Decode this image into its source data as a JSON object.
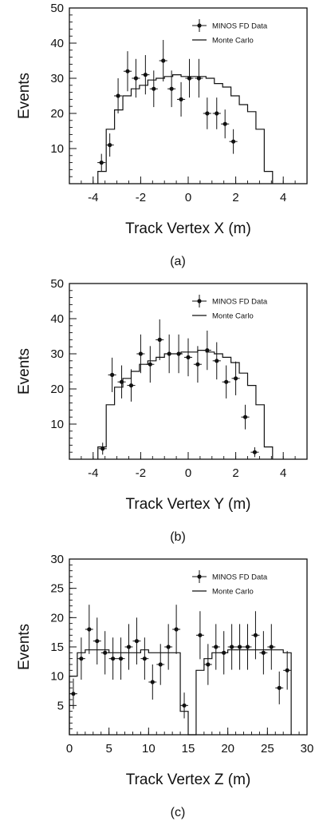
{
  "chart_data": [
    {
      "type": "histogram",
      "panel_label": "(a)",
      "xlabel": "Track Vertex X (m)",
      "ylabel": "Events",
      "xlim": [
        -5,
        5
      ],
      "ylim": [
        0,
        50
      ],
      "xticks": [
        "-4",
        "-2",
        "0",
        "2",
        "4"
      ],
      "yticks": [
        "10",
        "20",
        "30",
        "40",
        "50"
      ],
      "legend": {
        "position": "top-right",
        "data_label": "MINOS FD Data",
        "mc_label": "Monte Carlo"
      },
      "series": [
        {
          "name": "MINOS FD Data",
          "x": [
            -3.65,
            -3.3,
            -2.95,
            -2.55,
            -2.2,
            -1.8,
            -1.45,
            -1.05,
            -0.7,
            -0.3,
            0.05,
            0.45,
            0.8,
            1.2,
            1.55,
            1.9,
            2.3,
            2.7,
            3.05
          ],
          "y": [
            6,
            11,
            25,
            32,
            30,
            31,
            27,
            35,
            27,
            24,
            30,
            30,
            20,
            20,
            17,
            12,
            0,
            0,
            0
          ],
          "yerr": [
            2.5,
            3.3,
            5,
            5.7,
            5.5,
            5.6,
            5.2,
            5.9,
            5.2,
            4.9,
            5.5,
            5.5,
            4.5,
            4.5,
            4.1,
            3.5,
            0,
            0,
            0
          ]
        },
        {
          "name": "Monte Carlo",
          "edges": [
            -3.8,
            -3.45,
            -3.1,
            -2.75,
            -2.4,
            -2.05,
            -1.7,
            -1.35,
            -1.0,
            -0.65,
            -0.3,
            0.05,
            0.4,
            0.75,
            1.1,
            1.45,
            1.8,
            2.15,
            2.5,
            2.85,
            3.2,
            3.55
          ],
          "values": [
            3.5,
            15.5,
            21,
            25,
            27,
            28,
            29.5,
            30,
            30.5,
            31,
            30.5,
            30.5,
            30.5,
            30,
            28.5,
            27.5,
            25,
            22.5,
            20.5,
            15.5,
            3.5
          ]
        }
      ]
    },
    {
      "type": "histogram",
      "panel_label": "(b)",
      "xlabel": "Track Vertex Y (m)",
      "ylabel": "Events",
      "xlim": [
        -5,
        5
      ],
      "ylim": [
        0,
        50
      ],
      "xticks": [
        "-4",
        "-2",
        "0",
        "2",
        "4"
      ],
      "yticks": [
        "10",
        "20",
        "30",
        "40",
        "50"
      ],
      "legend": {
        "position": "top-right",
        "data_label": "MINOS FD Data",
        "mc_label": "Monte Carlo"
      },
      "series": [
        {
          "name": "MINOS FD Data",
          "x": [
            -3.6,
            -3.2,
            -2.8,
            -2.4,
            -2.0,
            -1.6,
            -1.2,
            -0.8,
            -0.4,
            0.0,
            0.4,
            0.8,
            1.2,
            1.6,
            2.0,
            2.4,
            2.8,
            3.2,
            3.6
          ],
          "y": [
            3,
            24,
            22,
            21,
            30,
            27,
            34,
            30,
            30,
            29,
            27,
            31,
            28,
            22,
            23,
            12,
            2,
            0,
            0
          ],
          "yerr": [
            1.7,
            4.9,
            4.7,
            4.6,
            5.5,
            5.2,
            5.8,
            5.5,
            5.5,
            5.4,
            5.2,
            5.6,
            5.3,
            4.7,
            4.8,
            3.5,
            1.4,
            0,
            0
          ]
        },
        {
          "name": "Monte Carlo",
          "edges": [
            -3.8,
            -3.45,
            -3.1,
            -2.75,
            -2.4,
            -2.05,
            -1.7,
            -1.35,
            -1.0,
            -0.65,
            -0.3,
            0.05,
            0.4,
            0.75,
            1.1,
            1.45,
            1.8,
            2.15,
            2.5,
            2.85,
            3.2,
            3.55
          ],
          "values": [
            3.5,
            15.5,
            20.5,
            23,
            25,
            27,
            28,
            29,
            30,
            30,
            30.5,
            30.5,
            31,
            30.5,
            30,
            29,
            27.5,
            24.5,
            21,
            15.5,
            3.5
          ]
        }
      ]
    },
    {
      "type": "histogram",
      "panel_label": "(c)",
      "xlabel": "Track Vertex Z (m)",
      "ylabel": "Events",
      "xlim": [
        0,
        30
      ],
      "ylim": [
        0,
        30
      ],
      "xticks": [
        "0",
        "5",
        "10",
        "15",
        "20",
        "25",
        "30"
      ],
      "yticks": [
        "5",
        "10",
        "15",
        "20",
        "25",
        "30"
      ],
      "legend": {
        "position": "top-right",
        "data_label": "MINOS FD Data",
        "mc_label": "Monte Carlo"
      },
      "series": [
        {
          "name": "MINOS FD Data",
          "x": [
            0.5,
            1.5,
            2.5,
            3.5,
            4.5,
            5.5,
            6.5,
            7.5,
            8.5,
            9.5,
            10.5,
            11.5,
            12.5,
            13.5,
            14.5,
            16.5,
            17.5,
            18.5,
            19.5,
            20.5,
            21.5,
            22.5,
            23.5,
            24.5,
            25.5,
            26.5,
            27.5
          ],
          "y": [
            7,
            13,
            18,
            16,
            14,
            13,
            13,
            15,
            16,
            13,
            9,
            12,
            15,
            18,
            5,
            17,
            12,
            15,
            14,
            15,
            15,
            15,
            17,
            14,
            15,
            8,
            11
          ],
          "yerr": [
            2.6,
            3.6,
            4.2,
            4.0,
            3.7,
            3.6,
            3.6,
            3.9,
            4.0,
            3.6,
            3.0,
            3.5,
            3.9,
            4.2,
            2.2,
            4.1,
            3.5,
            3.9,
            3.7,
            3.9,
            3.9,
            3.9,
            4.1,
            3.7,
            3.9,
            2.8,
            3.3
          ]
        },
        {
          "name": "Monte Carlo",
          "edges": [
            0,
            1,
            2,
            3,
            4,
            5,
            6,
            7,
            8,
            9,
            10,
            11,
            12,
            13,
            14,
            15,
            16,
            17,
            18,
            19,
            20,
            21,
            22,
            23,
            24,
            25,
            26,
            27,
            28
          ],
          "values": [
            10,
            14,
            14.5,
            14.5,
            14.5,
            14,
            14,
            14,
            14,
            14.5,
            14,
            14,
            14,
            14,
            4,
            0,
            11,
            13,
            14,
            14,
            14.5,
            14.5,
            14.5,
            14.5,
            14.5,
            14.5,
            14.5,
            14
          ]
        }
      ]
    }
  ]
}
